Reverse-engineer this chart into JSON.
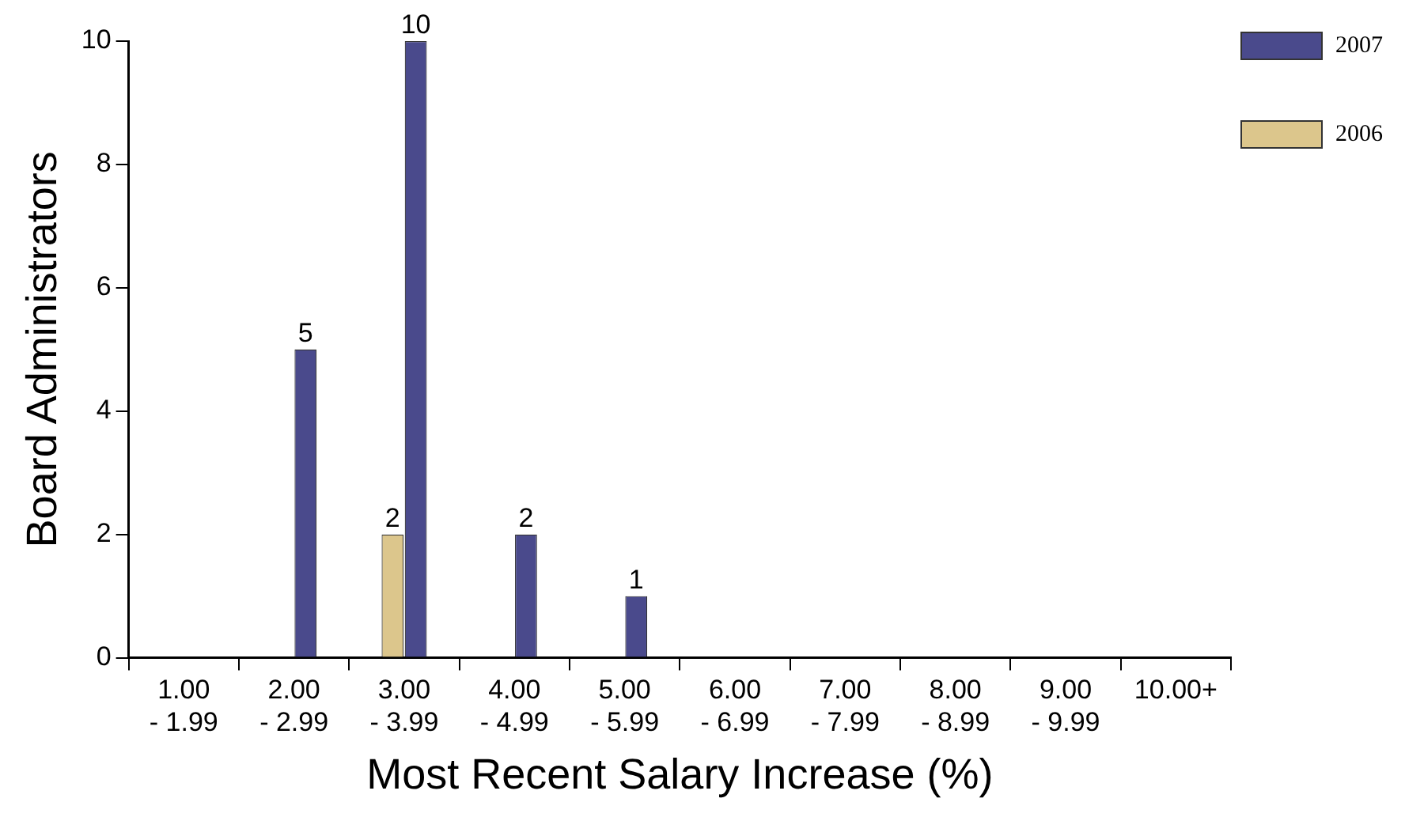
{
  "chart_data": {
    "type": "bar",
    "xlabel": "Most Recent Salary Increase (%)",
    "ylabel": "Board Administrators",
    "categories": [
      "1.00\n- 1.99",
      "2.00\n- 2.99",
      "3.00\n- 3.99",
      "4.00\n- 4.99",
      "5.00\n- 5.99",
      "6.00\n- 6.99",
      "7.00\n- 7.99",
      "8.00\n- 8.99",
      "9.00\n- 9.99",
      "10.00+"
    ],
    "series": [
      {
        "name": "2007",
        "color": "#4a4a8c",
        "values": [
          0,
          5,
          10,
          2,
          1,
          0,
          0,
          0,
          0,
          0
        ],
        "value_labels": [
          null,
          "5",
          "10",
          "2",
          "1",
          null,
          null,
          null,
          null,
          null
        ]
      },
      {
        "name": "2006",
        "color": "#dcc68c",
        "values": [
          0,
          0,
          2,
          0,
          0,
          0,
          0,
          0,
          0,
          0
        ],
        "value_labels": [
          null,
          null,
          "2",
          null,
          null,
          null,
          null,
          null,
          null,
          null
        ]
      }
    ],
    "ylim": [
      0,
      10
    ],
    "yticks": [
      0,
      2,
      4,
      6,
      8,
      10
    ],
    "grid": false,
    "legend": "top right"
  }
}
